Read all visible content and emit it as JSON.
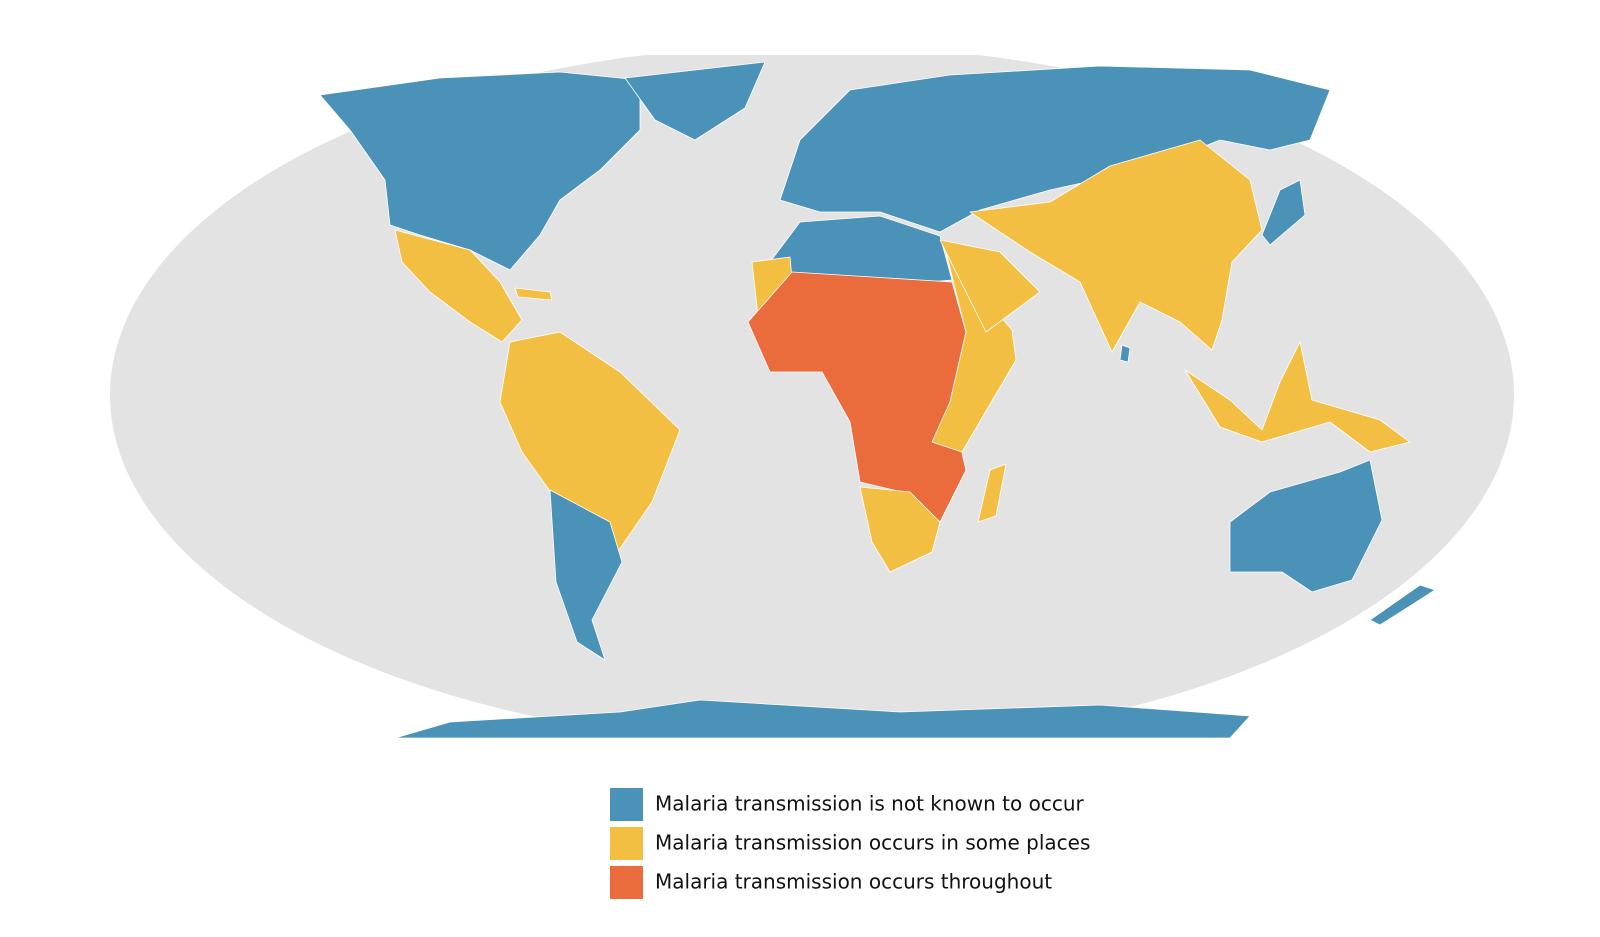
{
  "legend": {
    "items": [
      {
        "label": "Malaria transmission is not known to occur",
        "color": "#4a92b8"
      },
      {
        "label": "Malaria transmission occurs in some places",
        "color": "#f2bf42"
      },
      {
        "label": "Malaria transmission occurs throughout",
        "color": "#ea6c3c"
      }
    ]
  }
}
